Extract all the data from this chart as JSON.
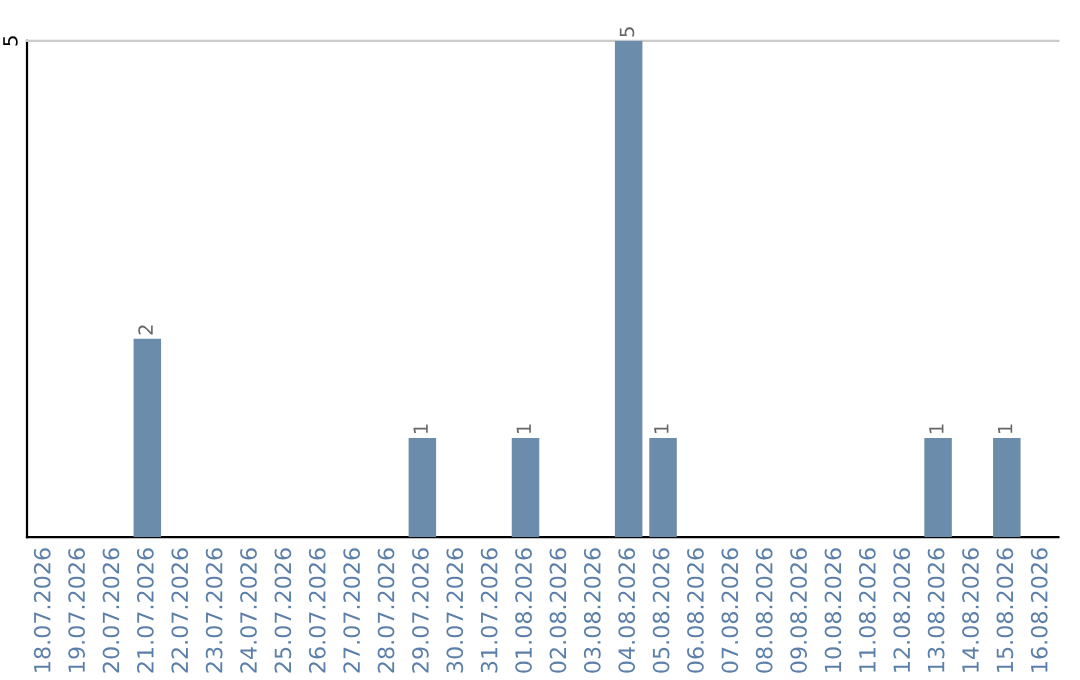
{
  "chart_data": {
    "type": "bar",
    "categories": [
      "18.07.2026",
      "19.07.2026",
      "20.07.2026",
      "21.07.2026",
      "22.07.2026",
      "23.07.2026",
      "24.07.2026",
      "25.07.2026",
      "26.07.2026",
      "27.07.2026",
      "28.07.2026",
      "29.07.2026",
      "30.07.2026",
      "31.07.2026",
      "01.08.2026",
      "02.08.2026",
      "03.08.2026",
      "04.08.2026",
      "05.08.2026",
      "06.08.2026",
      "07.08.2026",
      "08.08.2026",
      "09.08.2026",
      "10.08.2026",
      "11.08.2026",
      "12.08.2026",
      "13.08.2026",
      "14.08.2026",
      "15.08.2026",
      "16.08.2026"
    ],
    "values": [
      0,
      0,
      0,
      2,
      0,
      0,
      0,
      0,
      0,
      0,
      0,
      1,
      0,
      0,
      1,
      0,
      0,
      5,
      1,
      0,
      0,
      0,
      0,
      0,
      0,
      0,
      1,
      0,
      1,
      0
    ],
    "value_labels": [
      null,
      null,
      null,
      "2",
      null,
      null,
      null,
      null,
      null,
      null,
      null,
      "1",
      null,
      null,
      "1",
      null,
      null,
      "5",
      "1",
      null,
      null,
      null,
      null,
      null,
      null,
      null,
      "1",
      null,
      "1",
      null
    ],
    "color": "#6c8cab",
    "ylim": [
      0,
      5
    ],
    "yticks": [
      5
    ]
  }
}
